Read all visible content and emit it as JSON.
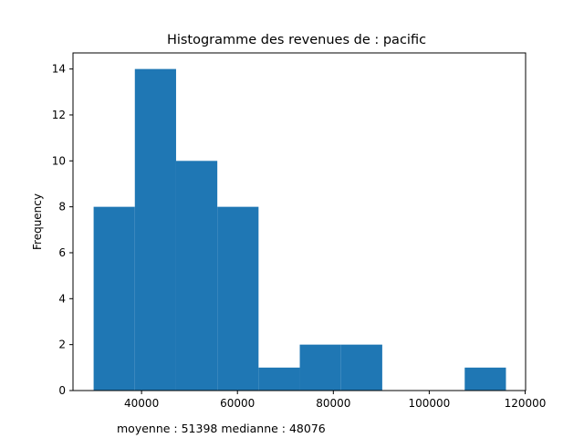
{
  "chart_data": {
    "type": "bar",
    "title": "Histogramme des revenues de : pacific",
    "xlabel": "",
    "ylabel": "Frequency",
    "xlim": [
      25700,
      120100
    ],
    "ylim": [
      0,
      14.7
    ],
    "grid": false,
    "legend": "none",
    "bar_color": "#1f77b4",
    "bins": [
      {
        "start": 30000,
        "end": 38600,
        "count": 8
      },
      {
        "start": 38600,
        "end": 47200,
        "count": 14
      },
      {
        "start": 47200,
        "end": 55800,
        "count": 10
      },
      {
        "start": 55800,
        "end": 64400,
        "count": 8
      },
      {
        "start": 64400,
        "end": 73000,
        "count": 1
      },
      {
        "start": 73000,
        "end": 81600,
        "count": 2
      },
      {
        "start": 81600,
        "end": 90200,
        "count": 2
      },
      {
        "start": 90200,
        "end": 98800,
        "count": 0
      },
      {
        "start": 98800,
        "end": 107400,
        "count": 0
      },
      {
        "start": 107400,
        "end": 116000,
        "count": 1
      }
    ],
    "x_ticks": [
      40000,
      60000,
      80000,
      100000,
      120000
    ],
    "y_ticks": [
      0,
      2,
      4,
      6,
      8,
      10,
      12,
      14
    ],
    "footnote": "moyenne : 51398  medianne : 48076"
  }
}
